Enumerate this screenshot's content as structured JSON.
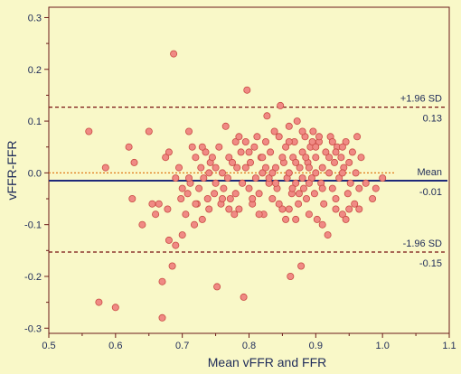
{
  "colors": {
    "background": "#F9F8C8",
    "axis": "#6B1A1A",
    "point_fill": "#F08A84",
    "point_stroke": "#C94A44",
    "sd_line": "#7A1212",
    "zero_line": "#E07A1A",
    "mean_line": "#1F2A7A",
    "text": "#1E2B59"
  },
  "chart_data": {
    "type": "scatter",
    "title": "",
    "xlabel": "Mean vFFR and FFR",
    "ylabel": "vFFR-FFR",
    "xlim": [
      0.5,
      1.1
    ],
    "ylim": [
      -0.31,
      0.32
    ],
    "x_ticks": [
      "0.5",
      "0.6",
      "0.7",
      "0.8",
      "0.9",
      "1.0",
      "1.1"
    ],
    "y_ticks": [
      "0.3",
      "0.2",
      "0.1",
      "0.0",
      "-0.1",
      "-0.2",
      "-0.3"
    ],
    "grid": false,
    "reference_lines": [
      {
        "label": "+1.96 SD",
        "value_label": "0.13",
        "y": 0.127,
        "style": "dashed",
        "color": "sd_line"
      },
      {
        "label": "Mean",
        "value_label": "-0.01",
        "y": -0.015,
        "style": "solid",
        "color": "mean_line"
      },
      {
        "label": "-1.96 SD",
        "value_label": "-0.15",
        "y": -0.153,
        "style": "dashed",
        "color": "sd_line"
      },
      {
        "label": "",
        "value_label": "",
        "y": 0.0,
        "style": "dotted",
        "color": "zero_line"
      }
    ],
    "points": [
      [
        0.56,
        0.08
      ],
      [
        0.575,
        -0.25
      ],
      [
        0.585,
        0.01
      ],
      [
        0.6,
        -0.26
      ],
      [
        0.62,
        0.05
      ],
      [
        0.625,
        -0.05
      ],
      [
        0.628,
        0.02
      ],
      [
        0.64,
        -0.1
      ],
      [
        0.65,
        0.08
      ],
      [
        0.655,
        -0.06
      ],
      [
        0.66,
        -0.08
      ],
      [
        0.665,
        -0.06
      ],
      [
        0.67,
        -0.21
      ],
      [
        0.67,
        -0.28
      ],
      [
        0.675,
        0.03
      ],
      [
        0.678,
        -0.07
      ],
      [
        0.68,
        -0.13
      ],
      [
        0.685,
        -0.18
      ],
      [
        0.687,
        0.23
      ],
      [
        0.69,
        -0.14
      ],
      [
        0.69,
        -0.01
      ],
      [
        0.695,
        0.01
      ],
      [
        0.698,
        -0.05
      ],
      [
        0.7,
        -0.12
      ],
      [
        0.705,
        -0.08
      ],
      [
        0.708,
        -0.04
      ],
      [
        0.71,
        0.08
      ],
      [
        0.712,
        -0.02
      ],
      [
        0.715,
        0.05
      ],
      [
        0.718,
        -0.1
      ],
      [
        0.72,
        0.03
      ],
      [
        0.722,
        -0.06
      ],
      [
        0.725,
        -0.03
      ],
      [
        0.728,
        0.01
      ],
      [
        0.73,
        -0.09
      ],
      [
        0.732,
        -0.01
      ],
      [
        0.735,
        0.04
      ],
      [
        0.738,
        -0.05
      ],
      [
        0.74,
        -0.07
      ],
      [
        0.742,
        0.02
      ],
      [
        0.745,
        0.03
      ],
      [
        0.748,
        -0.04
      ],
      [
        0.75,
        -0.02
      ],
      [
        0.752,
        -0.22
      ],
      [
        0.755,
        0.05
      ],
      [
        0.758,
        -0.06
      ],
      [
        0.76,
        0.0
      ],
      [
        0.762,
        -0.03
      ],
      [
        0.765,
        0.09
      ],
      [
        0.768,
        -0.01
      ],
      [
        0.77,
        0.03
      ],
      [
        0.772,
        -0.05
      ],
      [
        0.775,
        0.02
      ],
      [
        0.778,
        -0.08
      ],
      [
        0.78,
        -0.04
      ],
      [
        0.782,
        0.01
      ],
      [
        0.785,
        -0.07
      ],
      [
        0.788,
        0.04
      ],
      [
        0.79,
        -0.02
      ],
      [
        0.792,
        -0.24
      ],
      [
        0.795,
        0.06
      ],
      [
        0.797,
        0.16
      ],
      [
        0.8,
        -0.03
      ],
      [
        0.802,
        0.02
      ],
      [
        0.805,
        -0.06
      ],
      [
        0.808,
        0.05
      ],
      [
        0.81,
        -0.01
      ],
      [
        0.812,
        0.07
      ],
      [
        0.815,
        -0.04
      ],
      [
        0.818,
        0.03
      ],
      [
        0.82,
        0.0
      ],
      [
        0.822,
        -0.08
      ],
      [
        0.825,
        0.06
      ],
      [
        0.827,
        0.11
      ],
      [
        0.83,
        -0.02
      ],
      [
        0.832,
        0.04
      ],
      [
        0.835,
        -0.05
      ],
      [
        0.838,
        0.08
      ],
      [
        0.84,
        0.01
      ],
      [
        0.842,
        -0.03
      ],
      [
        0.845,
        0.07
      ],
      [
        0.847,
        0.13
      ],
      [
        0.85,
        -0.07
      ],
      [
        0.852,
        0.02
      ],
      [
        0.855,
        0.05
      ],
      [
        0.857,
        -0.01
      ],
      [
        0.86,
        0.09
      ],
      [
        0.862,
        -0.2
      ],
      [
        0.864,
        -0.04
      ],
      [
        0.866,
        0.03
      ],
      [
        0.868,
        0.06
      ],
      [
        0.87,
        -0.02
      ],
      [
        0.872,
        0.1
      ],
      [
        0.874,
        -0.06
      ],
      [
        0.876,
        0.01
      ],
      [
        0.878,
        -0.18
      ],
      [
        0.88,
        0.04
      ],
      [
        0.882,
        -0.03
      ],
      [
        0.884,
        0.07
      ],
      [
        0.886,
        -0.05
      ],
      [
        0.888,
        0.02
      ],
      [
        0.89,
        -0.08
      ],
      [
        0.892,
        0.05
      ],
      [
        0.894,
        -0.01
      ],
      [
        0.896,
        0.08
      ],
      [
        0.898,
        -0.04
      ],
      [
        0.9,
        0.03
      ],
      [
        0.902,
        -0.09
      ],
      [
        0.905,
        0.06
      ],
      [
        0.908,
        -0.02
      ],
      [
        0.91,
        0.01
      ],
      [
        0.912,
        -0.06
      ],
      [
        0.915,
        0.04
      ],
      [
        0.918,
        -0.12
      ],
      [
        0.92,
        0.0
      ],
      [
        0.922,
        0.07
      ],
      [
        0.925,
        -0.03
      ],
      [
        0.928,
        0.02
      ],
      [
        0.93,
        -0.07
      ],
      [
        0.932,
        0.05
      ],
      [
        0.935,
        -0.01
      ],
      [
        0.938,
        0.03
      ],
      [
        0.94,
        -0.08
      ],
      [
        0.942,
        0.01
      ],
      [
        0.945,
        0.06
      ],
      [
        0.948,
        -0.04
      ],
      [
        0.95,
        0.02
      ],
      [
        0.952,
        -0.02
      ],
      [
        0.955,
        0.04
      ],
      [
        0.958,
        -0.06
      ],
      [
        0.96,
        0.0
      ],
      [
        0.962,
        0.07
      ],
      [
        0.965,
        -0.03
      ],
      [
        0.968,
        0.03
      ],
      [
        0.975,
        -0.02
      ],
      [
        0.985,
        -0.05
      ],
      [
        0.99,
        -0.03
      ],
      [
        1.0,
        -0.01
      ],
      [
        0.83,
        -0.01
      ],
      [
        0.86,
        0.0
      ],
      [
        0.88,
        -0.01
      ],
      [
        0.9,
        0.0
      ],
      [
        0.87,
        0.02
      ],
      [
        0.85,
        0.03
      ],
      [
        0.89,
        0.01
      ],
      [
        0.91,
        -0.03
      ],
      [
        0.82,
        0.03
      ],
      [
        0.84,
        -0.02
      ],
      [
        0.76,
        -0.05
      ],
      [
        0.74,
        0.0
      ],
      [
        0.8,
        0.04
      ],
      [
        0.78,
        0.06
      ],
      [
        0.87,
        -0.09
      ],
      [
        0.86,
        -0.07
      ],
      [
        0.91,
        -0.1
      ],
      [
        0.93,
        0.04
      ],
      [
        0.95,
        -0.07
      ],
      [
        0.94,
        0.05
      ],
      [
        0.72,
        -0.06
      ],
      [
        0.7,
        -0.03
      ],
      [
        0.68,
        0.04
      ],
      [
        0.93,
        -0.05
      ],
      [
        0.88,
        0.08
      ],
      [
        0.86,
        0.06
      ],
      [
        0.835,
        0.0
      ],
      [
        0.815,
        -0.08
      ],
      [
        0.795,
        0.01
      ],
      [
        0.855,
        -0.09
      ],
      [
        0.905,
        0.07
      ],
      [
        0.945,
        -0.09
      ],
      [
        0.925,
        0.06
      ],
      [
        0.965,
        -0.07
      ],
      [
        0.875,
        -0.04
      ],
      [
        0.895,
        0.06
      ],
      [
        0.845,
        -0.06
      ],
      [
        0.865,
        -0.03
      ],
      [
        0.885,
        0.03
      ],
      [
        0.825,
        0.01
      ],
      [
        0.805,
        -0.05
      ],
      [
        0.785,
        0.07
      ],
      [
        0.75,
        0.01
      ],
      [
        0.77,
        -0.07
      ],
      [
        0.73,
        0.05
      ],
      [
        0.71,
        -0.01
      ],
      [
        0.89,
        -0.02
      ],
      [
        0.9,
        0.05
      ],
      [
        0.92,
        0.03
      ],
      [
        0.94,
        0.0
      ]
    ]
  }
}
